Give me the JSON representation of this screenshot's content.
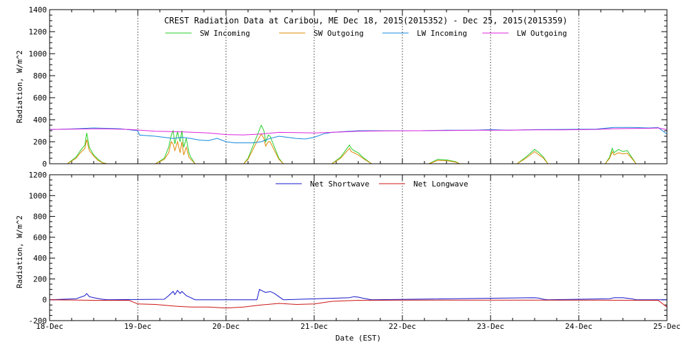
{
  "chart_data": [
    {
      "type": "line",
      "title": "CREST Radiation Data at Caribou, ME   Dec 18, 2015(2015352) - Dec 25, 2015(2015359)",
      "xlabel": "",
      "ylabel": "Radiation, W/m^2",
      "ylim": [
        0,
        1400
      ],
      "yticks": [
        0,
        200,
        400,
        600,
        800,
        1000,
        1200,
        1400
      ],
      "xlim": [
        "2015-12-18",
        "2015-12-25"
      ],
      "grid": true,
      "legend_position": "top",
      "series": [
        {
          "name": "SW Incoming",
          "color": "#22cc22",
          "points": [
            [
              0,
              0
            ],
            [
              0.2,
              0
            ],
            [
              0.3,
              60
            ],
            [
              0.35,
              120
            ],
            [
              0.4,
              170
            ],
            [
              0.42,
              280
            ],
            [
              0.45,
              150
            ],
            [
              0.5,
              80
            ],
            [
              0.55,
              40
            ],
            [
              0.6,
              10
            ],
            [
              0.65,
              0
            ],
            [
              1.2,
              0
            ],
            [
              1.3,
              50
            ],
            [
              1.35,
              150
            ],
            [
              1.38,
              260
            ],
            [
              1.4,
              300
            ],
            [
              1.42,
              180
            ],
            [
              1.45,
              290
            ],
            [
              1.48,
              200
            ],
            [
              1.5,
              300
            ],
            [
              1.52,
              150
            ],
            [
              1.55,
              230
            ],
            [
              1.58,
              100
            ],
            [
              1.6,
              60
            ],
            [
              1.65,
              0
            ],
            [
              2.2,
              0
            ],
            [
              2.25,
              50
            ],
            [
              2.3,
              150
            ],
            [
              2.35,
              250
            ],
            [
              2.4,
              350
            ],
            [
              2.43,
              300
            ],
            [
              2.45,
              200
            ],
            [
              2.48,
              260
            ],
            [
              2.5,
              250
            ],
            [
              2.55,
              150
            ],
            [
              2.6,
              50
            ],
            [
              2.65,
              0
            ],
            [
              3.2,
              0
            ],
            [
              3.3,
              60
            ],
            [
              3.4,
              170
            ],
            [
              3.42,
              140
            ],
            [
              3.45,
              120
            ],
            [
              3.5,
              100
            ],
            [
              3.55,
              60
            ],
            [
              3.65,
              0
            ],
            [
              4.3,
              0
            ],
            [
              4.35,
              20
            ],
            [
              4.4,
              40
            ],
            [
              4.5,
              35
            ],
            [
              4.6,
              20
            ],
            [
              4.65,
              0
            ],
            [
              5.3,
              0
            ],
            [
              5.4,
              60
            ],
            [
              5.5,
              130
            ],
            [
              5.55,
              100
            ],
            [
              5.6,
              60
            ],
            [
              5.65,
              0
            ],
            [
              6.3,
              0
            ],
            [
              6.35,
              60
            ],
            [
              6.38,
              140
            ],
            [
              6.4,
              100
            ],
            [
              6.45,
              130
            ],
            [
              6.5,
              110
            ],
            [
              6.55,
              120
            ],
            [
              6.6,
              60
            ],
            [
              6.65,
              0
            ],
            [
              7,
              0
            ]
          ]
        },
        {
          "name": "SW Outgoing",
          "color": "#dd8800",
          "points": [
            [
              0,
              0
            ],
            [
              0.2,
              0
            ],
            [
              0.3,
              50
            ],
            [
              0.35,
              100
            ],
            [
              0.4,
              140
            ],
            [
              0.42,
              220
            ],
            [
              0.45,
              120
            ],
            [
              0.5,
              70
            ],
            [
              0.55,
              30
            ],
            [
              0.6,
              8
            ],
            [
              0.65,
              0
            ],
            [
              1.2,
              0
            ],
            [
              1.3,
              40
            ],
            [
              1.35,
              100
            ],
            [
              1.38,
              200
            ],
            [
              1.4,
              180
            ],
            [
              1.42,
              120
            ],
            [
              1.45,
              200
            ],
            [
              1.48,
              100
            ],
            [
              1.5,
              200
            ],
            [
              1.52,
              80
            ],
            [
              1.55,
              150
            ],
            [
              1.58,
              60
            ],
            [
              1.6,
              40
            ],
            [
              1.65,
              0
            ],
            [
              2.2,
              0
            ],
            [
              2.25,
              40
            ],
            [
              2.3,
              120
            ],
            [
              2.35,
              200
            ],
            [
              2.4,
              270
            ],
            [
              2.43,
              230
            ],
            [
              2.45,
              160
            ],
            [
              2.48,
              200
            ],
            [
              2.5,
              200
            ],
            [
              2.55,
              120
            ],
            [
              2.6,
              40
            ],
            [
              2.65,
              0
            ],
            [
              3.2,
              0
            ],
            [
              3.3,
              50
            ],
            [
              3.4,
              140
            ],
            [
              3.42,
              110
            ],
            [
              3.45,
              100
            ],
            [
              3.5,
              80
            ],
            [
              3.55,
              50
            ],
            [
              3.65,
              0
            ],
            [
              4.3,
              0
            ],
            [
              4.35,
              15
            ],
            [
              4.4,
              30
            ],
            [
              4.5,
              28
            ],
            [
              4.6,
              15
            ],
            [
              4.65,
              0
            ],
            [
              5.3,
              0
            ],
            [
              5.4,
              50
            ],
            [
              5.5,
              110
            ],
            [
              5.55,
              80
            ],
            [
              5.6,
              50
            ],
            [
              5.65,
              0
            ],
            [
              6.3,
              0
            ],
            [
              6.35,
              50
            ],
            [
              6.38,
              110
            ],
            [
              6.4,
              80
            ],
            [
              6.45,
              100
            ],
            [
              6.5,
              90
            ],
            [
              6.55,
              95
            ],
            [
              6.6,
              50
            ],
            [
              6.65,
              0
            ],
            [
              7,
              0
            ]
          ]
        },
        {
          "name": "LW Incoming",
          "color": "#1188dd",
          "points": [
            [
              0,
              310
            ],
            [
              0.3,
              318
            ],
            [
              0.5,
              325
            ],
            [
              0.8,
              318
            ],
            [
              1,
              300
            ],
            [
              1.02,
              260
            ],
            [
              1.2,
              250
            ],
            [
              1.4,
              230
            ],
            [
              1.5,
              240
            ],
            [
              1.6,
              230
            ],
            [
              1.7,
              215
            ],
            [
              1.8,
              210
            ],
            [
              1.9,
              230
            ],
            [
              2,
              200
            ],
            [
              2.1,
              190
            ],
            [
              2.2,
              190
            ],
            [
              2.3,
              190
            ],
            [
              2.4,
              200
            ],
            [
              2.5,
              230
            ],
            [
              2.6,
              250
            ],
            [
              2.7,
              240
            ],
            [
              2.8,
              230
            ],
            [
              2.9,
              225
            ],
            [
              3,
              240
            ],
            [
              3.1,
              270
            ],
            [
              3.2,
              285
            ],
            [
              3.5,
              300
            ],
            [
              3.8,
              300
            ],
            [
              4.2,
              300
            ],
            [
              4.5,
              305
            ],
            [
              4.8,
              305
            ],
            [
              5,
              310
            ],
            [
              5.2,
              305
            ],
            [
              5.5,
              310
            ],
            [
              5.8,
              312
            ],
            [
              6.2,
              315
            ],
            [
              6.4,
              330
            ],
            [
              6.6,
              330
            ],
            [
              6.8,
              325
            ],
            [
              6.9,
              330
            ],
            [
              7,
              270
            ]
          ]
        },
        {
          "name": "LW Outgoing",
          "color": "#dd22dd",
          "points": [
            [
              0,
              312
            ],
            [
              0.3,
              315
            ],
            [
              0.6,
              318
            ],
            [
              0.9,
              312
            ],
            [
              1.2,
              295
            ],
            [
              1.5,
              290
            ],
            [
              1.8,
              280
            ],
            [
              2,
              265
            ],
            [
              2.2,
              262
            ],
            [
              2.4,
              270
            ],
            [
              2.6,
              285
            ],
            [
              2.8,
              283
            ],
            [
              3,
              280
            ],
            [
              3.2,
              285
            ],
            [
              3.5,
              295
            ],
            [
              3.8,
              298
            ],
            [
              4.2,
              300
            ],
            [
              4.5,
              302
            ],
            [
              4.8,
              305
            ],
            [
              5.2,
              305
            ],
            [
              5.5,
              308
            ],
            [
              5.8,
              308
            ],
            [
              6.2,
              312
            ],
            [
              6.4,
              318
            ],
            [
              6.6,
              320
            ],
            [
              6.8,
              322
            ],
            [
              6.9,
              325
            ],
            [
              7,
              310
            ]
          ]
        }
      ]
    },
    {
      "type": "line",
      "title": "",
      "xlabel": "Date (EST)",
      "ylabel": "Radiation, W/m^2",
      "ylim": [
        -200,
        1200
      ],
      "yticks": [
        -200,
        0,
        200,
        400,
        600,
        800,
        1000,
        1200
      ],
      "x_tick_labels": [
        "18-Dec",
        "19-Dec",
        "20-Dec",
        "21-Dec",
        "22-Dec",
        "23-Dec",
        "24-Dec",
        "25-Dec"
      ],
      "xlim": [
        "2015-12-18",
        "2015-12-25"
      ],
      "grid": true,
      "legend_position": "top",
      "series": [
        {
          "name": "Net Shortwave",
          "color": "#1111cc",
          "points": [
            [
              0,
              0
            ],
            [
              0.3,
              10
            ],
            [
              0.4,
              40
            ],
            [
              0.42,
              60
            ],
            [
              0.45,
              30
            ],
            [
              0.5,
              20
            ],
            [
              0.6,
              5
            ],
            [
              0.65,
              0
            ],
            [
              1.3,
              5
            ],
            [
              1.35,
              40
            ],
            [
              1.4,
              80
            ],
            [
              1.42,
              50
            ],
            [
              1.45,
              90
            ],
            [
              1.48,
              60
            ],
            [
              1.5,
              80
            ],
            [
              1.55,
              40
            ],
            [
              1.6,
              20
            ],
            [
              1.65,
              0
            ],
            [
              2.35,
              0
            ],
            [
              2.38,
              100
            ],
            [
              2.4,
              90
            ],
            [
              2.45,
              70
            ],
            [
              2.5,
              80
            ],
            [
              2.55,
              60
            ],
            [
              2.6,
              30
            ],
            [
              2.65,
              0
            ],
            [
              3.4,
              20
            ],
            [
              3.45,
              30
            ],
            [
              3.5,
              25
            ],
            [
              3.55,
              15
            ],
            [
              3.65,
              0
            ],
            [
              5.5,
              20
            ],
            [
              5.55,
              15
            ],
            [
              5.6,
              5
            ],
            [
              5.65,
              0
            ],
            [
              6.35,
              10
            ],
            [
              6.4,
              20
            ],
            [
              6.5,
              20
            ],
            [
              6.6,
              10
            ],
            [
              6.65,
              0
            ],
            [
              7,
              0
            ]
          ]
        },
        {
          "name": "Net Longwave",
          "color": "#cc1111",
          "points": [
            [
              0,
              0
            ],
            [
              0.5,
              -5
            ],
            [
              0.9,
              -5
            ],
            [
              1,
              -40
            ],
            [
              1.2,
              -45
            ],
            [
              1.4,
              -60
            ],
            [
              1.6,
              -70
            ],
            [
              1.8,
              -70
            ],
            [
              2,
              -80
            ],
            [
              2.2,
              -70
            ],
            [
              2.4,
              -50
            ],
            [
              2.6,
              -35
            ],
            [
              2.8,
              -45
            ],
            [
              3,
              -40
            ],
            [
              3.2,
              -15
            ],
            [
              3.5,
              -5
            ],
            [
              4,
              -3
            ],
            [
              5,
              -3
            ],
            [
              6,
              -3
            ],
            [
              6.9,
              -5
            ],
            [
              7,
              -70
            ]
          ]
        }
      ]
    }
  ]
}
